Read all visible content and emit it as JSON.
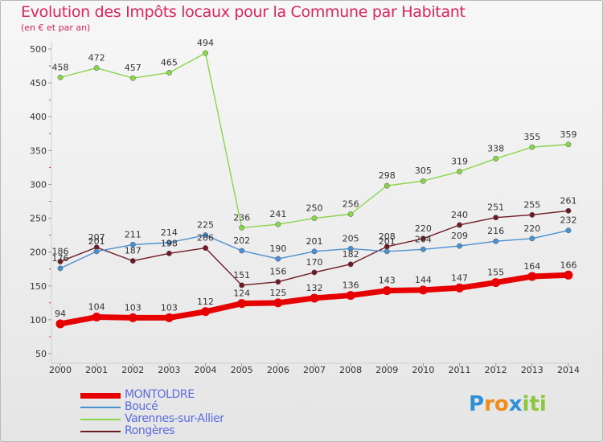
{
  "title": "Evolution des Impôts locaux pour la Commune par Habitant",
  "subtitle": "(en € et par an)",
  "logo": {
    "text": "Proxiti",
    "letters": [
      "P",
      "r",
      "o",
      "x",
      "i",
      "t",
      "i"
    ],
    "colors": [
      "#2e90d9",
      "#f08c1a",
      "#f08c1a",
      "#2e90d9",
      "#8cc63f",
      "#8cc63f",
      "#8cc63f"
    ]
  },
  "chart_data": {
    "type": "line",
    "title": "Evolution des Impôts locaux pour la Commune par Habitant",
    "ylabel": "(en € et par an)",
    "xlabel": "",
    "ylim": [
      50,
      500
    ],
    "grid": false,
    "legend_position": "bottom-left",
    "categories": [
      "2000",
      "2001",
      "2002",
      "2003",
      "2004",
      "2005",
      "2006",
      "2007",
      "2008",
      "2009",
      "2010",
      "2011",
      "2012",
      "2013",
      "2014"
    ],
    "y_ticks": [
      50,
      100,
      150,
      200,
      250,
      300,
      350,
      400,
      450,
      500
    ],
    "series": [
      {
        "name": "Rongères",
        "color": "#6e1a22",
        "values": [
          186,
          207,
          187,
          198,
          206,
          151,
          156,
          170,
          182,
          208,
          220,
          240,
          251,
          255,
          261
        ]
      },
      {
        "name": "Boucé",
        "color": "#4a90d0",
        "values": [
          176,
          201,
          211,
          214,
          225,
          202,
          190,
          201,
          205,
          201,
          204,
          209,
          216,
          220,
          232
        ]
      },
      {
        "name": "Varennes-sur-Allier",
        "color": "#88d64a",
        "values": [
          458,
          472,
          457,
          465,
          494,
          236,
          241,
          250,
          256,
          298,
          305,
          319,
          338,
          355,
          359
        ]
      },
      {
        "name": "MONTOLDRE",
        "color": "#e60000",
        "values": [
          94,
          104,
          103,
          103,
          112,
          124,
          125,
          132,
          136,
          143,
          144,
          147,
          155,
          164,
          166
        ]
      }
    ],
    "legend_order": [
      "MONTOLDRE",
      "Boucé",
      "Varennes-sur-Allier",
      "Rongères"
    ]
  }
}
